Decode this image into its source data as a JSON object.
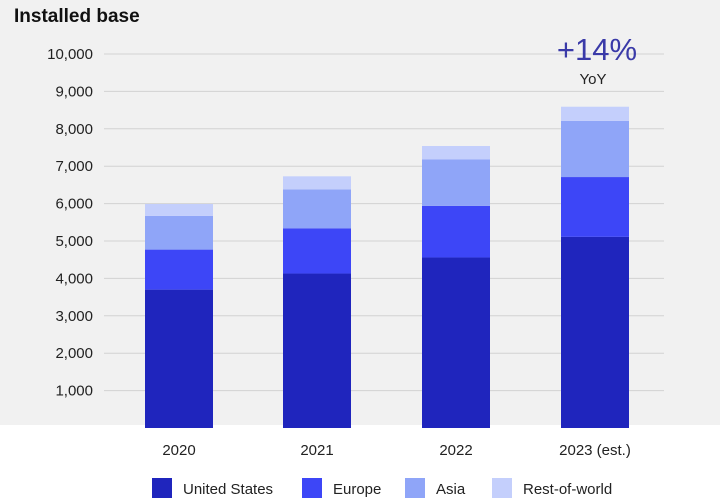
{
  "chart_data": {
    "type": "bar",
    "stacked": true,
    "title": "Installed base",
    "categories": [
      "2020",
      "2021",
      "2022",
      "2023 (est.)"
    ],
    "series": [
      {
        "name": "United States",
        "color": "#1f25bd",
        "values": [
          3700,
          4130,
          4560,
          5110
        ]
      },
      {
        "name": "Europe",
        "color": "#3d46f7",
        "values": [
          1070,
          1210,
          1380,
          1600
        ]
      },
      {
        "name": "Asia",
        "color": "#8fa5f8",
        "values": [
          900,
          1040,
          1240,
          1500
        ]
      },
      {
        "name": "Rest-of-world",
        "color": "#c4cffc",
        "values": [
          320,
          350,
          360,
          380
        ]
      }
    ],
    "yticks": [
      "1,000",
      "2,000",
      "3,000",
      "4,000",
      "5,000",
      "6,000",
      "7,000",
      "8,000",
      "9,000",
      "10,000"
    ],
    "ylim": [
      0,
      10000
    ],
    "grid": true,
    "legend_position": "bottom",
    "annotation": {
      "value": "+14%",
      "label": "YoY",
      "category_index": 3
    }
  }
}
